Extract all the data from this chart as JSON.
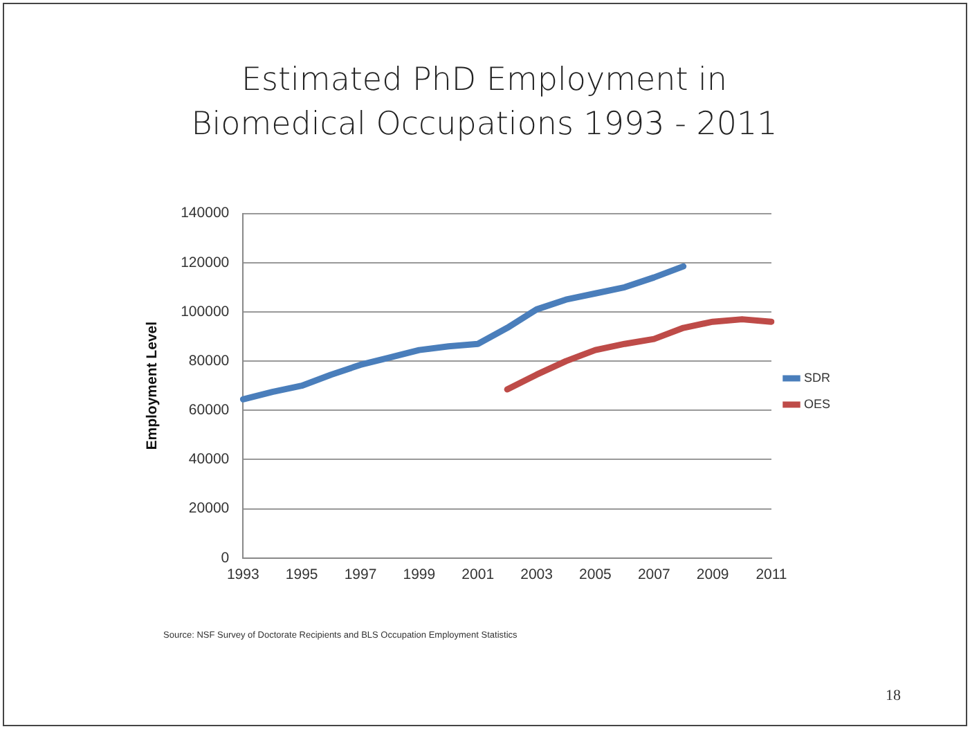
{
  "chart_data": {
    "type": "line",
    "title": "Estimated PhD Employment in Biomedical Occupations 1993 - 2011",
    "ylabel": "Employment Level",
    "categories": [
      "1993",
      null,
      "1995",
      null,
      "1997",
      null,
      "1999",
      null,
      "2001",
      null,
      "2003",
      null,
      "2005",
      null,
      "2007",
      null,
      "2009",
      null,
      "2011"
    ],
    "series": [
      {
        "name": "SDR",
        "color": "#4a7ebb",
        "values": [
          64500,
          67500,
          70000,
          74500,
          78500,
          81500,
          84500,
          86000,
          87000,
          93500,
          101000,
          105000,
          107500,
          110000,
          114000,
          118500,
          null,
          null,
          null
        ]
      },
      {
        "name": "OES",
        "color": "#be4b48",
        "values": [
          null,
          null,
          null,
          null,
          null,
          null,
          null,
          null,
          null,
          68500,
          74500,
          80000,
          84500,
          87000,
          89000,
          93500,
          96000,
          97000,
          96000
        ]
      }
    ],
    "ylim": [
      0,
      140000
    ],
    "yticks": [
      0,
      20000,
      40000,
      60000,
      80000,
      100000,
      120000,
      140000
    ],
    "grid": "y",
    "legend": "right",
    "marker": "none",
    "annotations": [
      "Source: NSF Survey of Doctorate Recipients and BLS Occupation Employment Statistics",
      "18"
    ]
  }
}
